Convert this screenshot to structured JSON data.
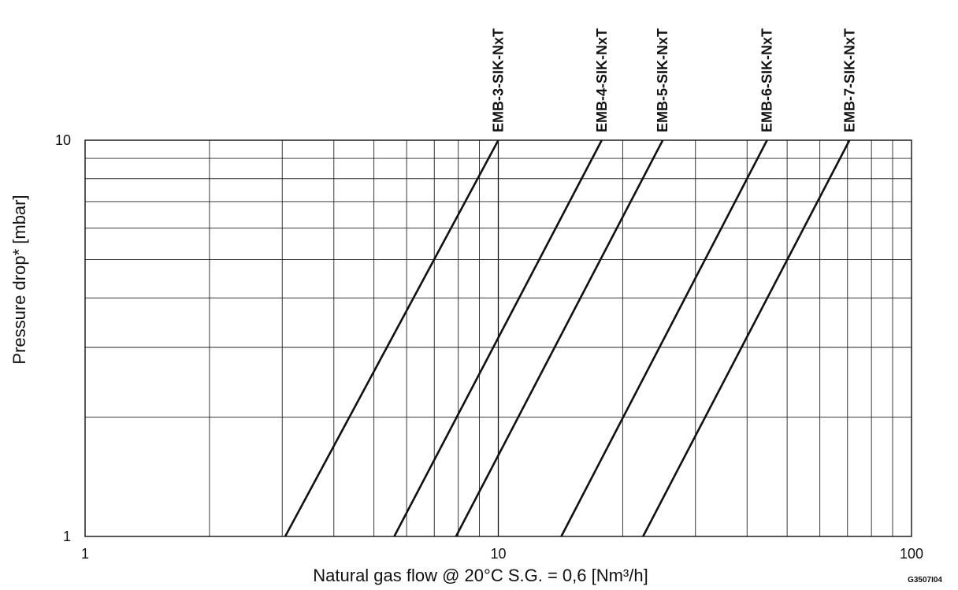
{
  "chart_data": {
    "type": "line",
    "title": "",
    "xlabel": "Natural gas flow @ 20°C  S.G. = 0,6 [Nm³/h]",
    "ylabel": "Pressure drop* [mbar]",
    "x_scale": "log",
    "y_scale": "log",
    "xlim": [
      1,
      100
    ],
    "ylim": [
      1,
      10
    ],
    "x_ticks": [
      {
        "value": 1,
        "label": "1"
      },
      {
        "value": 10,
        "label": "10"
      },
      {
        "value": 100,
        "label": "100"
      }
    ],
    "y_ticks": [
      {
        "value": 1,
        "label": "1"
      },
      {
        "value": 10,
        "label": "10"
      }
    ],
    "grid": true,
    "series": [
      {
        "name": "EMB-3-SIK-NxT",
        "x": [
          3.05,
          10.0
        ],
        "y": [
          1,
          10
        ]
      },
      {
        "name": "EMB-4-SIK-NxT",
        "x": [
          5.6,
          17.8
        ],
        "y": [
          1,
          10
        ]
      },
      {
        "name": "EMB-5-SIK-NxT",
        "x": [
          7.9,
          25.0
        ],
        "y": [
          1,
          10
        ]
      },
      {
        "name": "EMB-6-SIK-NxT",
        "x": [
          14.2,
          44.7
        ],
        "y": [
          1,
          10
        ]
      },
      {
        "name": "EMB-7-SIK-NxT",
        "x": [
          22.4,
          70.8
        ],
        "y": [
          1,
          10
        ]
      }
    ],
    "annotations": [
      "G3507I04"
    ]
  }
}
